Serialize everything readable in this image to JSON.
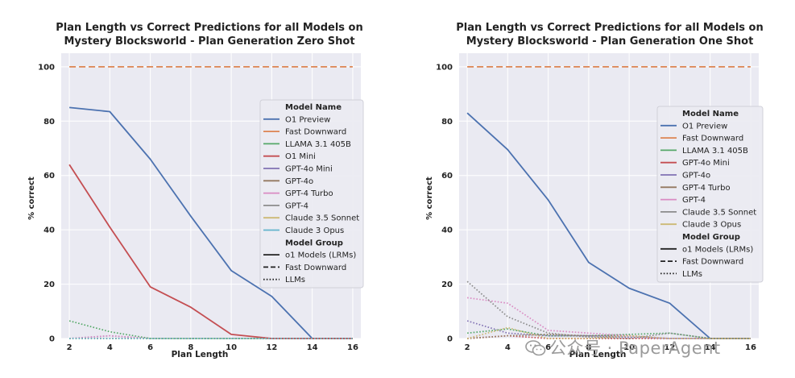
{
  "chart_data": [
    {
      "type": "line",
      "title": "Plan Length vs Correct Predictions for all Models on",
      "subtitle": "Mystery Blocksworld - Plan Generation Zero Shot",
      "xlabel": "Plan Length",
      "ylabel": "% correct",
      "xlim": [
        1.6,
        16.4
      ],
      "ylim": [
        0,
        105
      ],
      "xticks": [
        2,
        4,
        6,
        8,
        10,
        12,
        14,
        16
      ],
      "yticks": [
        0,
        20,
        40,
        60,
        80,
        100
      ],
      "grid": true,
      "legend_placement": "right",
      "legend_title_models": "Model Name",
      "legend_title_groups": "Model Group",
      "groups": [
        {
          "name": "o1 Models (LRMs)",
          "style": "solid"
        },
        {
          "name": "Fast Downward",
          "style": "dashed"
        },
        {
          "name": "LLMs",
          "style": "dotted"
        }
      ],
      "series": [
        {
          "name": "O1 Preview",
          "color": "#4c72b0",
          "style": "solid",
          "x": [
            2,
            4,
            6,
            8,
            10,
            12,
            14,
            16
          ],
          "y": [
            85,
            83.5,
            66,
            45,
            25,
            15.5,
            0,
            0
          ]
        },
        {
          "name": "Fast Downward",
          "color": "#dd8452",
          "style": "dashed",
          "x": [
            2,
            4,
            6,
            8,
            10,
            12,
            14,
            16
          ],
          "y": [
            100,
            100,
            100,
            100,
            100,
            100,
            100,
            100
          ]
        },
        {
          "name": "LLAMA 3.1 405B",
          "color": "#55a868",
          "style": "dotted",
          "x": [
            2,
            4,
            6,
            8,
            10,
            12,
            14,
            16
          ],
          "y": [
            6.5,
            2.5,
            0,
            0,
            0,
            0,
            0,
            0
          ]
        },
        {
          "name": "O1 Mini",
          "color": "#c44e52",
          "style": "solid",
          "x": [
            2,
            4,
            6,
            8,
            10,
            12,
            14,
            16
          ],
          "y": [
            64,
            41,
            19,
            11.5,
            1.5,
            0,
            0,
            0
          ]
        },
        {
          "name": "GPT-4o Mini",
          "color": "#8172b3",
          "style": "dotted",
          "x": [
            2,
            4,
            6,
            8,
            10,
            12,
            14,
            16
          ],
          "y": [
            0,
            1,
            0,
            0,
            0,
            0,
            0,
            0
          ]
        },
        {
          "name": "GPT-4o",
          "color": "#937860",
          "style": "dotted",
          "x": [
            2,
            4,
            6,
            8,
            10,
            12,
            14,
            16
          ],
          "y": [
            0,
            0,
            0,
            0,
            0,
            0,
            0,
            0
          ]
        },
        {
          "name": "GPT-4 Turbo",
          "color": "#da8bc3",
          "style": "dotted",
          "x": [
            2,
            4,
            6,
            8,
            10,
            12,
            14,
            16
          ],
          "y": [
            0,
            1,
            0,
            0,
            0,
            0,
            0,
            0
          ]
        },
        {
          "name": "GPT-4",
          "color": "#8c8c8c",
          "style": "dotted",
          "x": [
            2,
            4,
            6,
            8,
            10,
            12,
            14,
            16
          ],
          "y": [
            0,
            0,
            0,
            0,
            0,
            0,
            0,
            0
          ]
        },
        {
          "name": "Claude 3.5 Sonnet",
          "color": "#ccb974",
          "style": "dotted",
          "x": [
            2,
            4,
            6,
            8,
            10,
            12,
            14,
            16
          ],
          "y": [
            0,
            0,
            0,
            0,
            0,
            0,
            0,
            0
          ]
        },
        {
          "name": "Claude 3 Opus",
          "color": "#64b5cd",
          "style": "dotted",
          "x": [
            2,
            4,
            6,
            8,
            10,
            12,
            14,
            16
          ],
          "y": [
            0,
            0,
            0,
            0,
            0,
            0,
            0,
            0
          ]
        }
      ]
    },
    {
      "type": "line",
      "title": "Plan Length vs Correct Predictions for all Models on",
      "subtitle": "Mystery Blocksworld - Plan Generation One Shot",
      "xlabel": "Plan Length",
      "ylabel": "% correct",
      "xlim": [
        1.6,
        16.4
      ],
      "ylim": [
        0,
        105
      ],
      "xticks": [
        2,
        4,
        6,
        8,
        10,
        12,
        14,
        16
      ],
      "yticks": [
        0,
        20,
        40,
        60,
        80,
        100
      ],
      "grid": true,
      "legend_placement": "right",
      "legend_title_models": "Model Name",
      "legend_title_groups": "Model Group",
      "groups": [
        {
          "name": "o1 Models (LRMs)",
          "style": "solid"
        },
        {
          "name": "Fast Downward",
          "style": "dashed"
        },
        {
          "name": "LLMs",
          "style": "dotted"
        }
      ],
      "series": [
        {
          "name": "O1 Preview",
          "color": "#4c72b0",
          "style": "solid",
          "x": [
            2,
            4,
            6,
            8,
            10,
            12,
            14,
            16
          ],
          "y": [
            83,
            69.5,
            51,
            28,
            18.5,
            13,
            0,
            0
          ]
        },
        {
          "name": "Fast Downward",
          "color": "#dd8452",
          "style": "dashed",
          "x": [
            2,
            4,
            6,
            8,
            10,
            12,
            14,
            16
          ],
          "y": [
            100,
            100,
            100,
            100,
            100,
            100,
            100,
            100
          ]
        },
        {
          "name": "LLAMA 3.1 405B",
          "color": "#55a868",
          "style": "dotted",
          "x": [
            2,
            4,
            6,
            8,
            10,
            12,
            14,
            16
          ],
          "y": [
            2,
            3.5,
            1,
            1,
            1.5,
            2,
            0,
            0
          ]
        },
        {
          "name": "GPT-4o Mini",
          "color": "#c44e52",
          "style": "dotted",
          "x": [
            2,
            4,
            6,
            8,
            10,
            12,
            14,
            16
          ],
          "y": [
            0,
            1,
            0,
            0,
            0,
            0,
            0,
            0
          ]
        },
        {
          "name": "GPT-4o",
          "color": "#8172b3",
          "style": "dotted",
          "x": [
            2,
            4,
            6,
            8,
            10,
            12,
            14,
            16
          ],
          "y": [
            6.5,
            2,
            1,
            1,
            0.5,
            0,
            0,
            0
          ]
        },
        {
          "name": "GPT-4 Turbo",
          "color": "#937860",
          "style": "dotted",
          "x": [
            2,
            4,
            6,
            8,
            10,
            12,
            14,
            16
          ],
          "y": [
            0,
            1,
            1.5,
            1,
            1,
            0,
            0,
            0
          ]
        },
        {
          "name": "GPT-4",
          "color": "#da8bc3",
          "style": "dotted",
          "x": [
            2,
            4,
            6,
            8,
            10,
            12,
            14,
            16
          ],
          "y": [
            15,
            13,
            3,
            2,
            1,
            0,
            0,
            0
          ]
        },
        {
          "name": "Claude 3.5 Sonnet",
          "color": "#8c8c8c",
          "style": "dotted",
          "x": [
            2,
            4,
            6,
            8,
            10,
            12,
            14,
            16
          ],
          "y": [
            21,
            8,
            2,
            0.5,
            0,
            2,
            0,
            0
          ]
        },
        {
          "name": "Claude 3 Opus",
          "color": "#ccb974",
          "style": "dotted",
          "x": [
            2,
            4,
            6,
            8,
            10,
            12,
            14,
            16
          ],
          "y": [
            0,
            4,
            0,
            0,
            1,
            0,
            0,
            0
          ]
        }
      ]
    }
  ],
  "watermark": {
    "icon": "wechat-icon",
    "text": "公众号 · PaperAgent"
  }
}
